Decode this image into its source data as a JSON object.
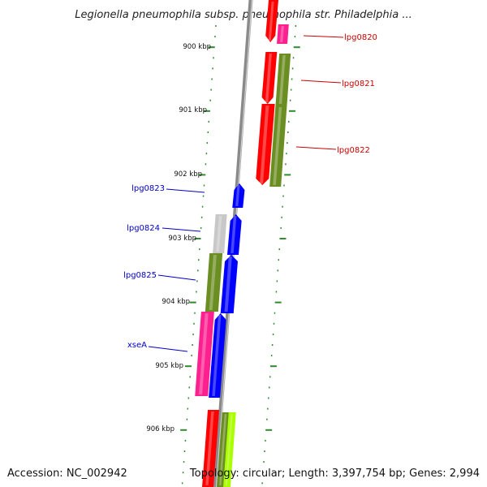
{
  "title": "Legionella pneumophila subsp. pneumophila str. Philadelphia ...",
  "footer": {
    "accession": "Accession: NC_002942",
    "stats": "Topology: circular; Length: 3,397,754 bp; Genes: 2,994"
  },
  "ticks": [
    "900 kbp",
    "901 kbp",
    "902 kbp",
    "903 kbp",
    "904 kbp",
    "905 kbp",
    "906 kbp"
  ],
  "colors": {
    "backbone": "#8a8a8a",
    "tick": "#2e8b2e",
    "label_right": "#cc0000",
    "label_left": "#0000cc",
    "red": "#ff0000",
    "magenta": "#ff2090",
    "olive": "#6b8e23",
    "blue": "#0000ff",
    "gray": "#c8c8c8",
    "lime": "#aaff00"
  },
  "genes": [
    {
      "label": "lpg0820",
      "strand": "plus",
      "color": "magenta"
    },
    {
      "label": "lpg0821",
      "strand": "plus",
      "color": "olive"
    },
    {
      "label": "lpg0822",
      "strand": "plus",
      "color": "red"
    },
    {
      "label": "lpg0823",
      "strand": "minus",
      "color": "blue"
    },
    {
      "label": "lpg0824",
      "strand": "minus",
      "color": "gray"
    },
    {
      "label": "lpg0825",
      "strand": "minus",
      "color": "olive"
    },
    {
      "label": "xseA",
      "strand": "minus",
      "color": "magenta"
    }
  ]
}
